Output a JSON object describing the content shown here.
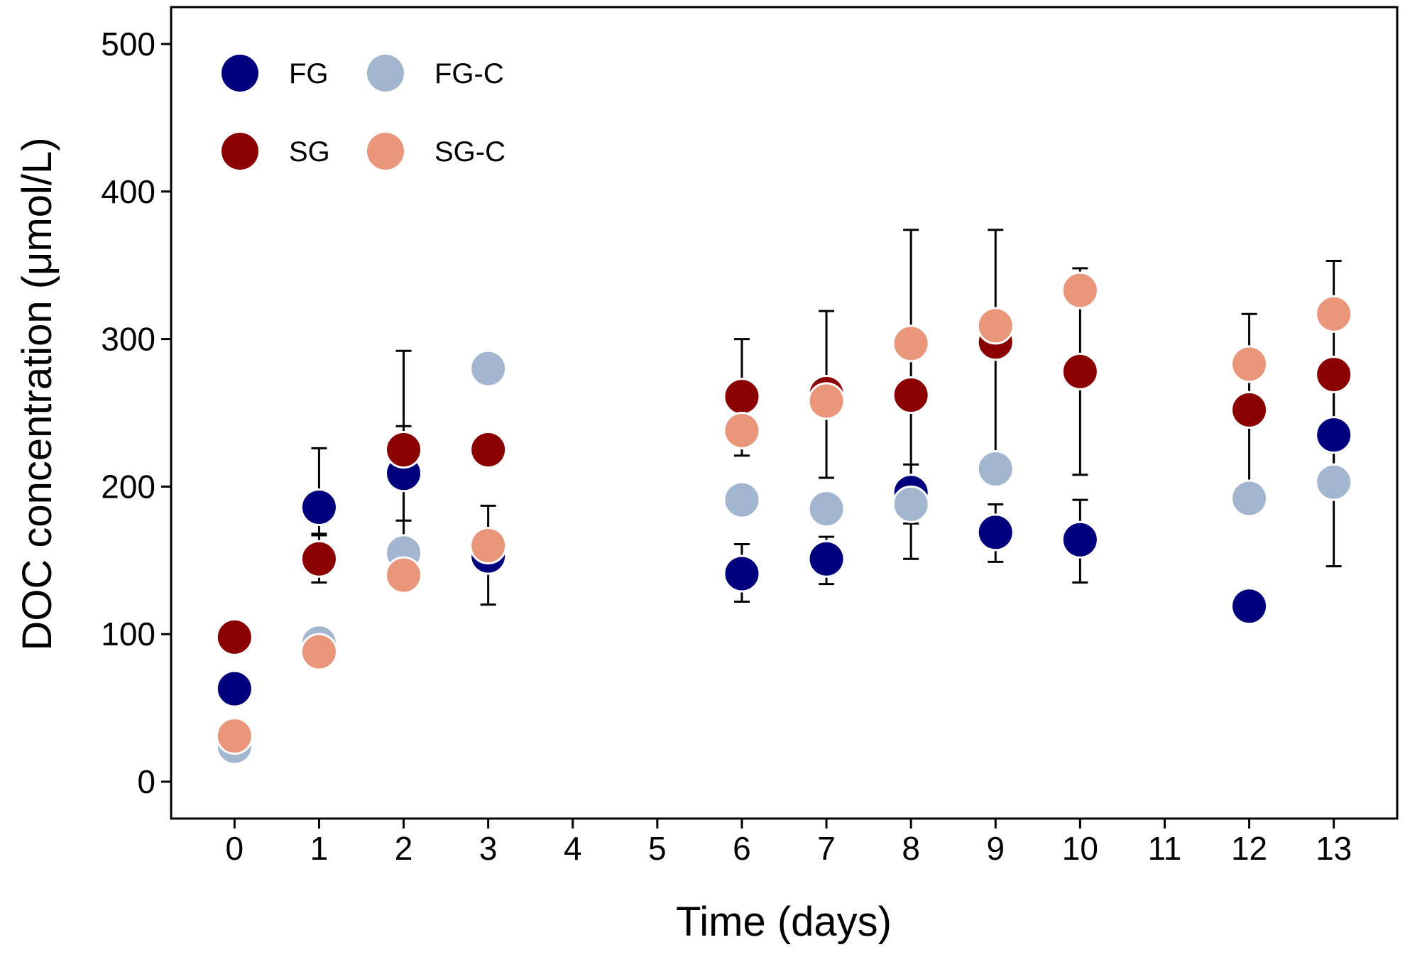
{
  "chart_data": {
    "type": "scatter",
    "xlabel": "Time (days)",
    "ylabel": "DOC concentration (μmol/L)",
    "xlim": [
      -0.75,
      13.75
    ],
    "ylim": [
      -25,
      525
    ],
    "x_ticks": [
      0,
      1,
      2,
      3,
      4,
      5,
      6,
      7,
      8,
      9,
      10,
      11,
      12,
      13
    ],
    "y_ticks": [
      0,
      100,
      200,
      300,
      400,
      500
    ],
    "legend_position": "top-left",
    "series": [
      {
        "name": "FG",
        "color": "#00007f",
        "points": [
          {
            "x": 0,
            "y": 63
          },
          {
            "x": 1,
            "y": 186,
            "err_low": 168,
            "err_high": 226
          },
          {
            "x": 2,
            "y": 209,
            "err_low": 177,
            "err_high": 241
          },
          {
            "x": 3,
            "y": 153,
            "err_low": 120,
            "err_high": 187
          },
          {
            "x": 6,
            "y": 141,
            "err_low": 122,
            "err_high": 161
          },
          {
            "x": 7,
            "y": 151,
            "err_low": 134,
            "err_high": 166
          },
          {
            "x": 8,
            "y": 196,
            "err_low": 175,
            "err_high": 215
          },
          {
            "x": 9,
            "y": 169,
            "err_low": 149,
            "err_high": 188
          },
          {
            "x": 10,
            "y": 164,
            "err_low": 135,
            "err_high": 191
          },
          {
            "x": 12,
            "y": 119
          },
          {
            "x": 13,
            "y": 235,
            "err_low": 198,
            "err_high": 270
          }
        ]
      },
      {
        "name": "FG-C",
        "color": "#a3b6d0",
        "points": [
          {
            "x": 0,
            "y": 24
          },
          {
            "x": 1,
            "y": 94
          },
          {
            "x": 2,
            "y": 155
          },
          {
            "x": 3,
            "y": 280
          },
          {
            "x": 6,
            "y": 191
          },
          {
            "x": 7,
            "y": 185
          },
          {
            "x": 8,
            "y": 188
          },
          {
            "x": 9,
            "y": 212
          },
          {
            "x": 12,
            "y": 192,
            "err_low": 187,
            "err_high": 198
          },
          {
            "x": 13,
            "y": 203
          }
        ]
      },
      {
        "name": "SG",
        "color": "#8b0000",
        "points": [
          {
            "x": 0,
            "y": 98
          },
          {
            "x": 1,
            "y": 151,
            "err_low": 135,
            "err_high": 167
          },
          {
            "x": 2,
            "y": 225,
            "err_low": 157,
            "err_high": 292
          },
          {
            "x": 3,
            "y": 225
          },
          {
            "x": 6,
            "y": 261,
            "err_low": 221,
            "err_high": 300
          },
          {
            "x": 7,
            "y": 263,
            "err_low": 206,
            "err_high": 319
          },
          {
            "x": 8,
            "y": 262,
            "err_low": 151,
            "err_high": 374
          },
          {
            "x": 9,
            "y": 298,
            "err_low": 222,
            "err_high": 374
          },
          {
            "x": 10,
            "y": 278,
            "err_low": 208,
            "err_high": 348
          },
          {
            "x": 12,
            "y": 252,
            "err_low": 187,
            "err_high": 317
          },
          {
            "x": 13,
            "y": 276,
            "err_low": 146,
            "err_high": 353
          }
        ]
      },
      {
        "name": "SG-C",
        "color": "#ea967b",
        "points": [
          {
            "x": 0,
            "y": 31
          },
          {
            "x": 1,
            "y": 88
          },
          {
            "x": 2,
            "y": 140
          },
          {
            "x": 3,
            "y": 160
          },
          {
            "x": 6,
            "y": 238
          },
          {
            "x": 7,
            "y": 258
          },
          {
            "x": 8,
            "y": 297
          },
          {
            "x": 9,
            "y": 309
          },
          {
            "x": 10,
            "y": 333
          },
          {
            "x": 12,
            "y": 283
          },
          {
            "x": 13,
            "y": 317
          }
        ]
      }
    ],
    "legend_layout": [
      [
        "FG",
        "FG-C"
      ],
      [
        "SG",
        "SG-C"
      ]
    ]
  }
}
